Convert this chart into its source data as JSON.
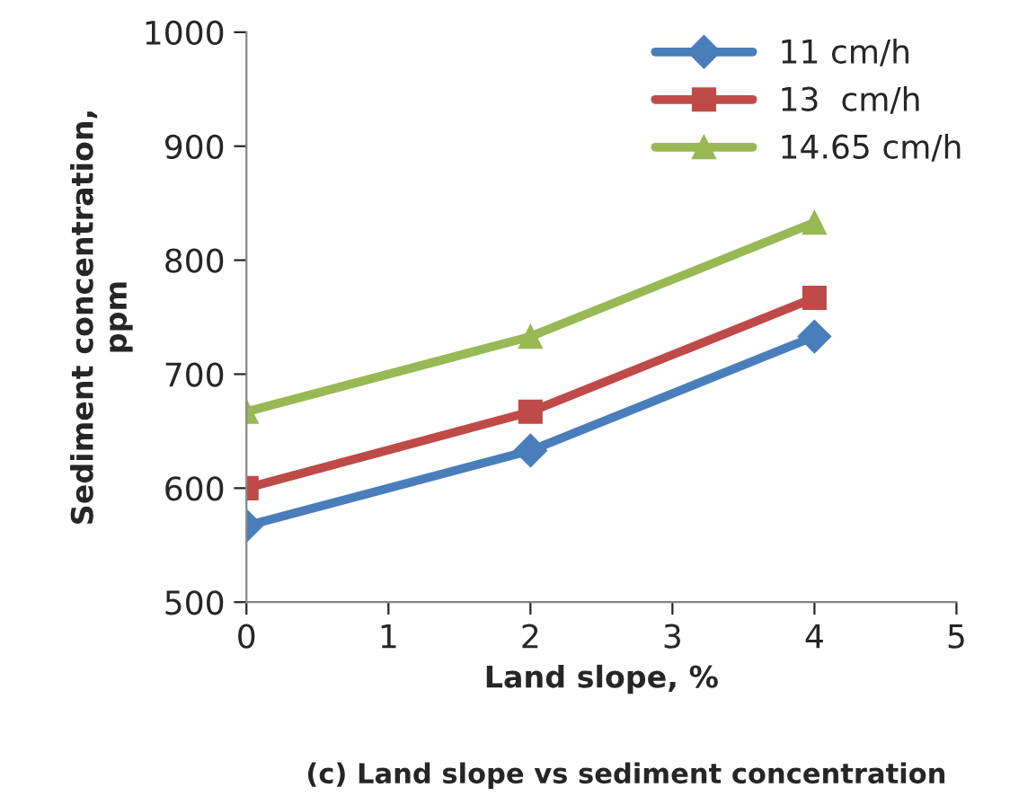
{
  "chart_data": {
    "type": "line",
    "xlabel": "Land slope, %",
    "ylabel": "Sediment concentration,\nppm",
    "x": [
      0,
      2,
      4
    ],
    "series": [
      {
        "name": "11 cm/h",
        "color": "#4a7ebb",
        "marker": "diamond",
        "values": [
          567,
          633,
          733
        ]
      },
      {
        "name": "13  cm/h",
        "color": "#be4b48",
        "marker": "square",
        "values": [
          600,
          667,
          767
        ]
      },
      {
        "name": "14.65 cm/h",
        "color": "#98b954",
        "marker": "triangle",
        "values": [
          667,
          733,
          833
        ]
      }
    ],
    "xlim": [
      0,
      5
    ],
    "xticks": [
      0,
      1,
      2,
      3,
      4,
      5
    ],
    "ylim": [
      500,
      1000
    ],
    "yticks": [
      500,
      600,
      700,
      800,
      900,
      1000
    ],
    "grid": false,
    "legend": "top right",
    "line_style": "solid",
    "annotations": [
      "(c) Land slope vs sediment concentration"
    ]
  }
}
